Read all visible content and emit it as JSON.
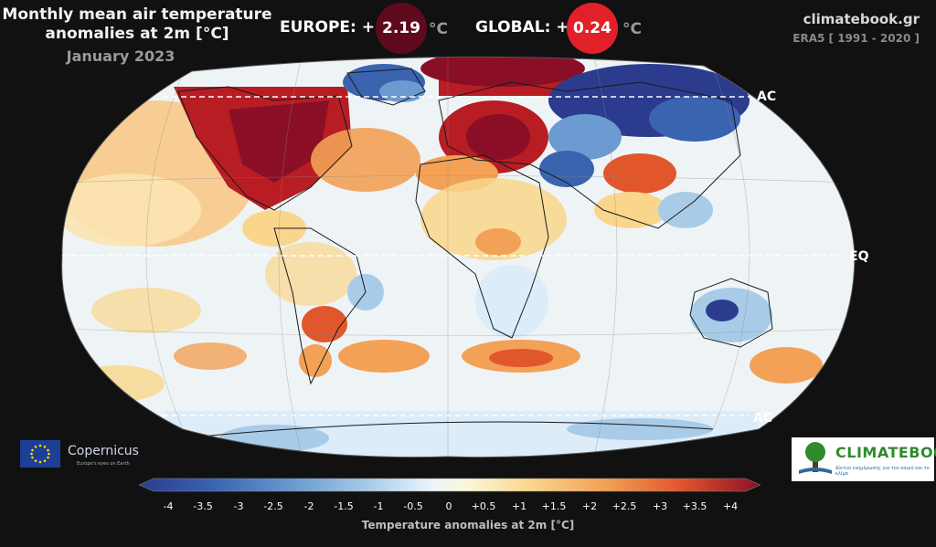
{
  "header": {
    "title_line1": "Monthly mean air temperature",
    "title_line2": "anomalies at 2m [°C]",
    "month": "January 2023",
    "site": "climatebook.gr",
    "period": "ERA5 [ 1991 - 2020 ]"
  },
  "stats": {
    "europe_label": "EUROPE: +",
    "europe_value": "2.19",
    "europe_color": "#5e0a1c",
    "global_label": "GLOBAL: +",
    "global_value": "0.24",
    "global_color": "#e2202a",
    "unit": "°C"
  },
  "map_labels": {
    "arctic": "AC",
    "equator": "EQ",
    "antarctic": "AC"
  },
  "colorbar": {
    "ticks": [
      "-4",
      "-3.5",
      "-3",
      "-2.5",
      "-2",
      "-1.5",
      "-1",
      "-0.5",
      "0",
      "+0.5",
      "+1",
      "+1.5",
      "+2",
      "+2.5",
      "+3",
      "+3.5",
      "+4"
    ],
    "title": "Temperature anomalies at 2m [°C]",
    "colors": [
      "#2b3c8e",
      "#3a63b0",
      "#6b9bd0",
      "#a8cbe8",
      "#dcecf8",
      "#fbf6d8",
      "#f9d68b",
      "#f2a156",
      "#e2562c",
      "#b81d23",
      "#8a0f26"
    ]
  },
  "logos": {
    "copernicus": "Copernicus",
    "copernicus_tagline": "Europe's eyes on Earth",
    "climatebook": "CLIMATEBOOK",
    "climatebook_tagline": "Δίκτυο ενημέρωσης για τον καιρό και το κλίμα"
  }
}
